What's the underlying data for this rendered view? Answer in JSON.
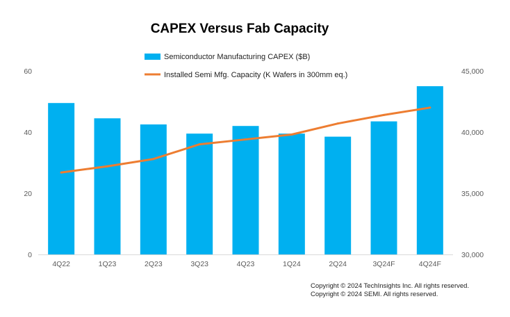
{
  "chart_data": {
    "type": "bar",
    "title": "CAPEX Versus Fab Capacity",
    "categories": [
      "4Q22",
      "1Q23",
      "2Q23",
      "3Q23",
      "4Q23",
      "1Q24",
      "2Q24",
      "3Q24F",
      "4Q24F"
    ],
    "series": [
      {
        "name": "Semiconductor Manufacturing CAPEX ($B)",
        "type": "bar",
        "axis": "left",
        "color": "#00B0F0",
        "values": [
          49.5,
          44.5,
          42.5,
          39.5,
          42,
          39.5,
          38.5,
          43.5,
          55
        ]
      },
      {
        "name": "Installed Semi Mfg. Capacity (K Wafers in 300mm eq.)",
        "type": "line",
        "axis": "right",
        "color": "#ED7D31",
        "values": [
          36700,
          37200,
          37800,
          39000,
          39400,
          39800,
          40700,
          41400,
          42000
        ]
      }
    ],
    "y_left": {
      "lim": [
        0,
        60
      ],
      "ticks": [
        "0",
        "20",
        "40",
        "60"
      ],
      "tick_values": [
        0,
        20,
        40,
        60
      ]
    },
    "y_right": {
      "lim": [
        30000,
        45000
      ],
      "ticks": [
        "30,000",
        "35,000",
        "40,000",
        "45,000"
      ],
      "tick_values": [
        30000,
        35000,
        40000,
        45000
      ]
    },
    "grid": false,
    "legend_position": "top"
  },
  "footer": {
    "copyright_lines": [
      "Copyright © 2024 TechInsights Inc.  All rights reserved.",
      "Copyright © 2024 SEMI.  All rights reserved."
    ]
  }
}
